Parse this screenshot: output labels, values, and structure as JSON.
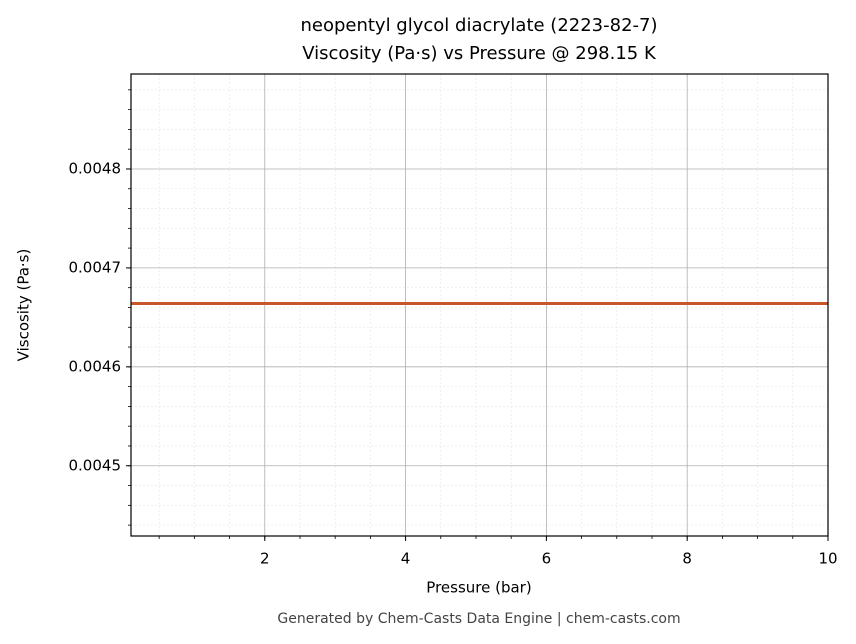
{
  "chart_data": {
    "type": "line",
    "title": "neopentyl glycol diacrylate (2223-82-7)",
    "subtitle": "Viscosity (Pa·s) vs Pressure @ 298.15 K",
    "x_label": "Pressure (bar)",
    "y_label": "Viscosity (Pa·s)",
    "x": [
      0.1,
      10
    ],
    "series": [
      {
        "name": "Viscosity",
        "color": "#c9562b",
        "values": [
          0.004664,
          0.004664
        ]
      }
    ],
    "xlim": [
      0.1,
      10
    ],
    "xticks": [
      2,
      4,
      6,
      8,
      10
    ],
    "ylim": [
      0.004429,
      0.004896
    ],
    "yticks": [
      0.0045,
      0.0046,
      0.0047,
      0.0048
    ],
    "grid": true,
    "minor_grid": true,
    "legend": false,
    "footer": "Generated by Chem-Casts Data Engine | chem-casts.com"
  }
}
